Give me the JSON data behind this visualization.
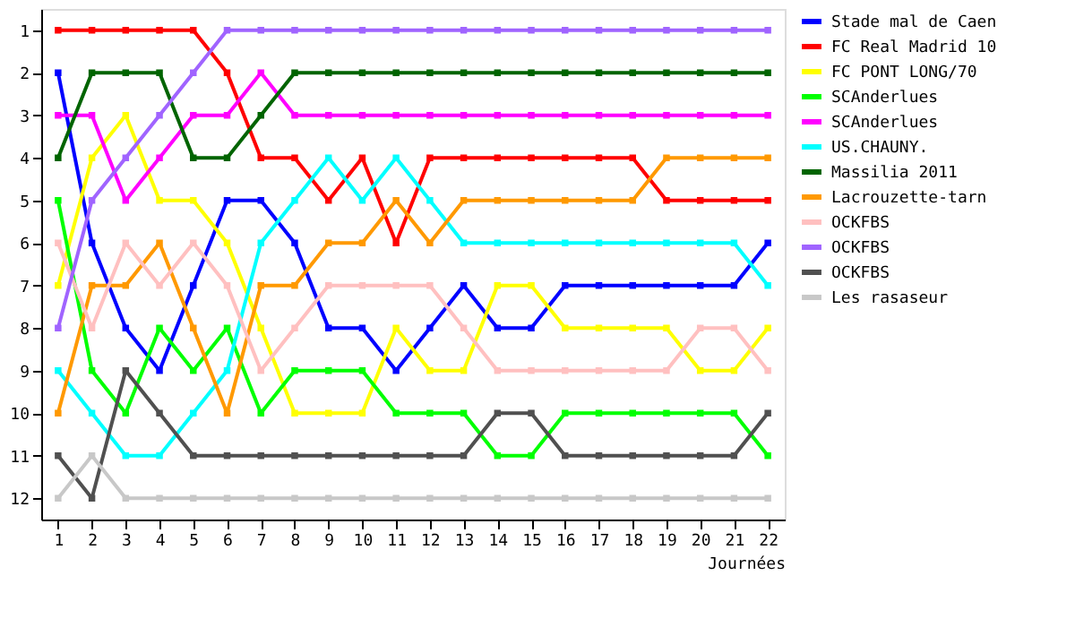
{
  "chart_data": {
    "type": "line",
    "xlabel": "Journées",
    "x": [
      1,
      2,
      3,
      4,
      5,
      6,
      7,
      8,
      9,
      10,
      11,
      12,
      13,
      14,
      15,
      16,
      17,
      18,
      19,
      20,
      21,
      22
    ],
    "xlim": [
      0.5,
      22.5
    ],
    "xticks": [
      1,
      2,
      3,
      4,
      5,
      6,
      7,
      8,
      9,
      10,
      11,
      12,
      13,
      14,
      15,
      16,
      17,
      18,
      19,
      20,
      21,
      22
    ],
    "ylim": [
      12.5,
      0.5
    ],
    "yticks": [
      1,
      2,
      3,
      4,
      5,
      6,
      7,
      8,
      9,
      10,
      11,
      12
    ],
    "grid": false,
    "legend": "right",
    "marker": "square",
    "line_style": "solid",
    "series": [
      {
        "name": "Stade mal de Caen",
        "color": "#0000ff",
        "values": [
          2,
          6,
          8,
          9,
          7,
          5,
          5,
          6,
          8,
          8,
          9,
          8,
          7,
          8,
          8,
          7,
          7,
          7,
          7,
          7,
          7,
          6
        ]
      },
      {
        "name": "FC Real Madrid 10",
        "color": "#ff0000",
        "values": [
          1,
          1,
          1,
          1,
          1,
          2,
          4,
          4,
          5,
          4,
          6,
          4,
          4,
          4,
          4,
          4,
          4,
          4,
          5,
          5,
          5,
          5
        ]
      },
      {
        "name": "FC PONT LONG/70",
        "color": "#ffff00",
        "values": [
          7,
          4,
          3,
          5,
          5,
          6,
          8,
          10,
          10,
          10,
          8,
          9,
          9,
          7,
          7,
          8,
          8,
          8,
          8,
          9,
          9,
          8
        ]
      },
      {
        "name": "SCAnderlues",
        "color": "#00ff00",
        "values": [
          5,
          9,
          10,
          8,
          9,
          8,
          10,
          9,
          9,
          9,
          10,
          10,
          10,
          11,
          11,
          10,
          10,
          10,
          10,
          10,
          10,
          11
        ]
      },
      {
        "name": "SCAnderlues",
        "color": "#ff00ff",
        "values": [
          3,
          3,
          5,
          4,
          3,
          3,
          2,
          3,
          3,
          3,
          3,
          3,
          3,
          3,
          3,
          3,
          3,
          3,
          3,
          3,
          3,
          3
        ]
      },
      {
        "name": "US.CHAUNY.",
        "color": "#00ffff",
        "values": [
          9,
          10,
          11,
          11,
          10,
          9,
          6,
          5,
          4,
          5,
          4,
          5,
          6,
          6,
          6,
          6,
          6,
          6,
          6,
          6,
          6,
          7
        ]
      },
      {
        "name": "Massilia 2011",
        "color": "#006400",
        "values": [
          4,
          2,
          2,
          2,
          4,
          4,
          3,
          2,
          2,
          2,
          2,
          2,
          2,
          2,
          2,
          2,
          2,
          2,
          2,
          2,
          2,
          2
        ]
      },
      {
        "name": "Lacrouzette-tarn",
        "color": "#ff9900",
        "values": [
          10,
          7,
          7,
          6,
          8,
          10,
          7,
          7,
          6,
          6,
          5,
          6,
          5,
          5,
          5,
          5,
          5,
          5,
          4,
          4,
          4,
          4
        ]
      },
      {
        "name": "OCKFBS",
        "color": "#ffc0c0",
        "values": [
          6,
          8,
          6,
          7,
          6,
          7,
          9,
          8,
          7,
          7,
          7,
          7,
          8,
          9,
          9,
          9,
          9,
          9,
          9,
          8,
          8,
          9
        ]
      },
      {
        "name": "OCKFBS",
        "color": "#a064ff",
        "values": [
          8,
          5,
          4,
          3,
          2,
          1,
          1,
          1,
          1,
          1,
          1,
          1,
          1,
          1,
          1,
          1,
          1,
          1,
          1,
          1,
          1,
          1
        ]
      },
      {
        "name": "OCKFBS",
        "color": "#505050",
        "values": [
          11,
          12,
          9,
          10,
          11,
          11,
          11,
          11,
          11,
          11,
          11,
          11,
          11,
          10,
          10,
          11,
          11,
          11,
          11,
          11,
          11,
          10
        ]
      },
      {
        "name": "Les rasaseur",
        "color": "#c8c8c8",
        "values": [
          12,
          11,
          12,
          12,
          12,
          12,
          12,
          12,
          12,
          12,
          12,
          12,
          12,
          12,
          12,
          12,
          12,
          12,
          12,
          12,
          12,
          12
        ]
      }
    ]
  }
}
